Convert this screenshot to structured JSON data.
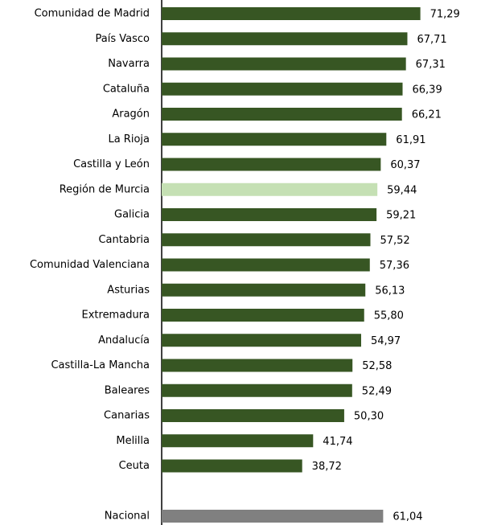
{
  "chart_data": {
    "type": "barh",
    "categories": [
      "Comunidad de Madrid",
      "País Vasco",
      "Navarra",
      "Cataluña",
      "Aragón",
      "La Rioja",
      "Castilla y León",
      "Región de Murcia",
      "Galicia",
      "Cantabria",
      "Comunidad Valenciana",
      "Asturias",
      "Extremadura",
      "Andalucía",
      "Castilla-La Mancha",
      "Baleares",
      "Canarias",
      "Melilla",
      "Ceuta",
      null,
      "Nacional"
    ],
    "values": [
      71.29,
      67.71,
      67.31,
      66.39,
      66.21,
      61.91,
      60.37,
      59.44,
      59.21,
      57.52,
      57.36,
      56.13,
      55.8,
      54.97,
      52.58,
      52.49,
      50.3,
      41.74,
      38.72,
      null,
      61.04
    ],
    "value_labels": [
      "71,29",
      "67,71",
      "67,31",
      "66,39",
      "66,21",
      "61,91",
      "60,37",
      "59,44",
      "59,21",
      "57,52",
      "57,36",
      "56,13",
      "55,80",
      "54,97",
      "52,58",
      "52,49",
      "50,30",
      "41,74",
      "38,72",
      null,
      "61,04"
    ],
    "colors": [
      "#375623",
      "#375623",
      "#375623",
      "#375623",
      "#375623",
      "#375623",
      "#375623",
      "#c5e0b4",
      "#375623",
      "#375623",
      "#375623",
      "#375623",
      "#375623",
      "#375623",
      "#375623",
      "#375623",
      "#375623",
      "#375623",
      "#375623",
      null,
      "#808080"
    ],
    "xlim": [
      0,
      88
    ]
  }
}
